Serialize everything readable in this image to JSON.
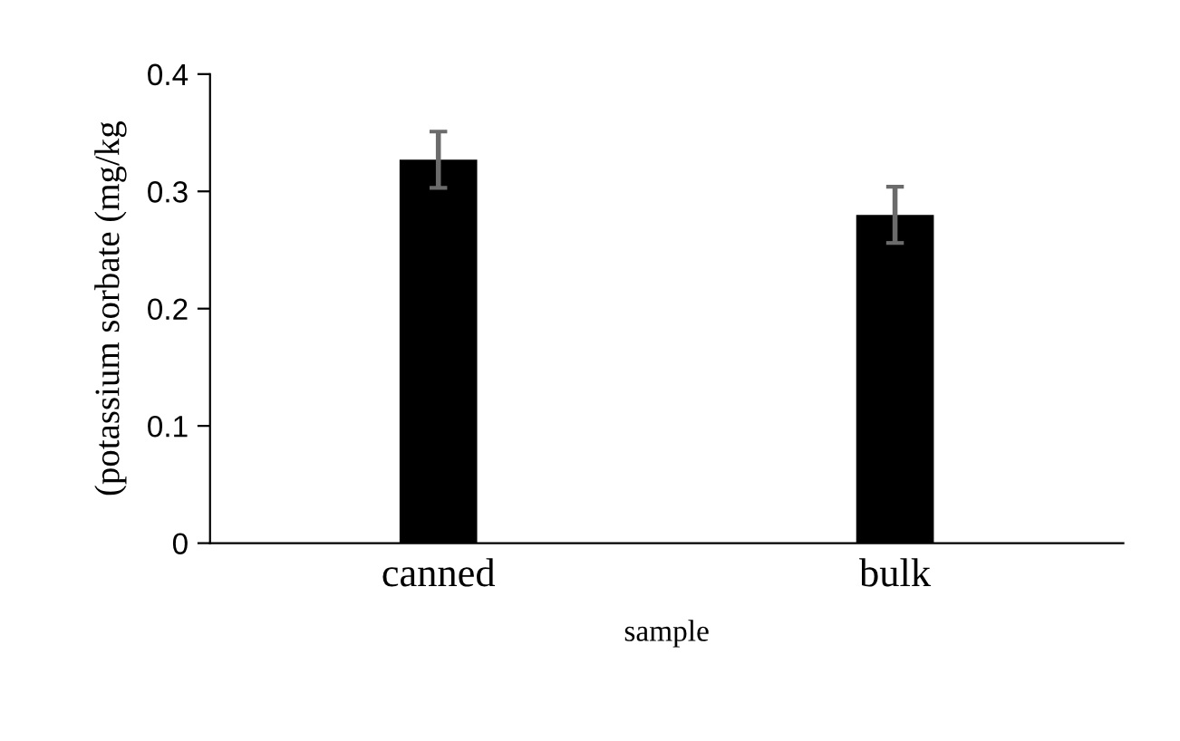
{
  "chart_data": {
    "type": "bar",
    "xlabel": "sample",
    "ylabel": "(potassium sorbate (mg/kg",
    "categories": [
      "canned",
      "bulk"
    ],
    "values": [
      0.327,
      0.28
    ],
    "errors": [
      0.024,
      0.024
    ],
    "color": "#000000",
    "ylim": [
      0,
      0.4
    ],
    "yticks": [
      0,
      0.1,
      0.2,
      0.3,
      0.4
    ],
    "grid": false,
    "legend": false
  }
}
